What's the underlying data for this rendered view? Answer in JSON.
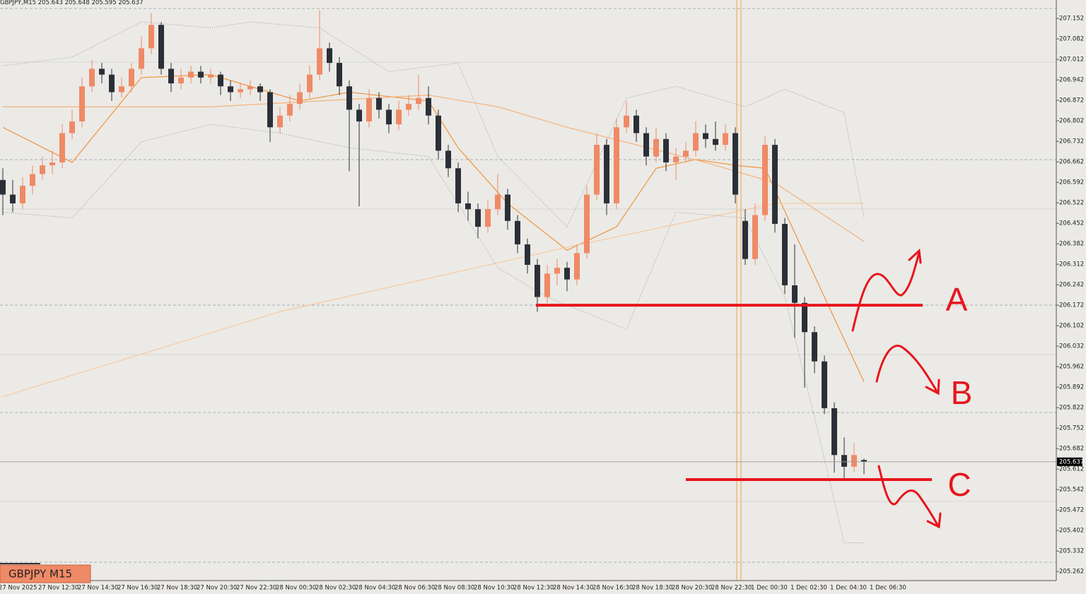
{
  "chart_data": {
    "type": "candlestick",
    "symbol": "GBPJPY,M15",
    "symbol_label": "GBPJPY M15",
    "up_color": "#ef8a66",
    "down_color": "#2b3038",
    "ylim": [
      205.231,
      207.215
    ],
    "yticks": [
      207.152,
      207.082,
      207.012,
      206.942,
      206.872,
      206.802,
      206.732,
      206.662,
      206.592,
      206.522,
      206.452,
      206.382,
      206.312,
      206.242,
      206.172,
      206.102,
      206.032,
      205.962,
      205.892,
      205.822,
      205.752,
      205.682,
      205.612,
      205.542,
      205.472,
      205.402,
      205.332,
      205.262
    ],
    "xlabels": [
      "27 Nov 2025",
      "27 Nov 12:30",
      "27 Nov 14:30",
      "27 Nov 16:30",
      "27 Nov 18:30",
      "27 Nov 20:30",
      "27 Nov 22:30",
      "28 Nov 00:30",
      "28 Nov 02:30",
      "28 Nov 04:30",
      "28 Nov 06:30",
      "28 Nov 08:30",
      "28 Nov 10:30",
      "28 Nov 12:30",
      "28 Nov 14:30",
      "28 Nov 16:30",
      "28 Nov 18:30",
      "28 Nov 20:30",
      "28 Nov 22:30",
      "1 Dec 00:30",
      "1 Dec 02:30",
      "1 Dec 04:30",
      "1 Dec 06:30"
    ],
    "candles": [
      [
        206.6,
        206.64,
        206.48,
        206.55
      ],
      [
        206.55,
        206.6,
        206.49,
        206.52
      ],
      [
        206.52,
        206.61,
        206.5,
        206.58
      ],
      [
        206.58,
        206.65,
        206.55,
        206.62
      ],
      [
        206.62,
        206.68,
        206.6,
        206.65
      ],
      [
        206.65,
        206.7,
        206.62,
        206.66
      ],
      [
        206.66,
        206.79,
        206.64,
        206.76
      ],
      [
        206.76,
        206.84,
        206.74,
        206.8
      ],
      [
        206.8,
        206.95,
        206.78,
        206.92
      ],
      [
        206.92,
        207.01,
        206.9,
        206.98
      ],
      [
        206.98,
        207.0,
        206.93,
        206.96
      ],
      [
        206.96,
        206.98,
        206.87,
        206.9
      ],
      [
        206.9,
        206.95,
        206.88,
        206.92
      ],
      [
        206.92,
        207.0,
        206.9,
        206.98
      ],
      [
        206.98,
        207.09,
        206.96,
        207.05
      ],
      [
        207.05,
        207.17,
        207.03,
        207.13
      ],
      [
        207.13,
        207.14,
        206.96,
        206.98
      ],
      [
        206.98,
        207.0,
        206.9,
        206.93
      ],
      [
        206.93,
        206.98,
        206.91,
        206.95
      ],
      [
        206.95,
        206.99,
        206.93,
        206.97
      ],
      [
        206.97,
        206.99,
        206.93,
        206.95
      ],
      [
        206.95,
        206.98,
        206.93,
        206.96
      ],
      [
        206.96,
        206.97,
        206.89,
        206.92
      ],
      [
        206.92,
        206.94,
        206.87,
        206.9
      ],
      [
        206.9,
        206.93,
        206.88,
        206.91
      ],
      [
        206.91,
        206.94,
        206.89,
        206.92
      ],
      [
        206.92,
        206.93,
        206.87,
        206.9
      ],
      [
        206.9,
        206.91,
        206.73,
        206.78
      ],
      [
        206.78,
        206.85,
        206.76,
        206.82
      ],
      [
        206.82,
        206.89,
        206.8,
        206.86
      ],
      [
        206.86,
        206.93,
        206.84,
        206.9
      ],
      [
        206.9,
        206.99,
        206.88,
        206.96
      ],
      [
        206.96,
        207.18,
        206.94,
        207.05
      ],
      [
        207.05,
        207.07,
        206.97,
        207.0
      ],
      [
        207.0,
        207.02,
        206.89,
        206.92
      ],
      [
        206.92,
        206.94,
        206.63,
        206.84
      ],
      [
        206.84,
        206.86,
        206.51,
        206.8
      ],
      [
        206.8,
        206.91,
        206.78,
        206.88
      ],
      [
        206.88,
        206.9,
        206.81,
        206.84
      ],
      [
        206.84,
        206.86,
        206.76,
        206.79
      ],
      [
        206.79,
        206.87,
        206.77,
        206.84
      ],
      [
        206.84,
        206.89,
        206.82,
        206.86
      ],
      [
        206.86,
        206.96,
        206.84,
        206.88
      ],
      [
        206.88,
        206.92,
        206.79,
        206.82
      ],
      [
        206.82,
        206.84,
        206.67,
        206.7
      ],
      [
        206.7,
        206.72,
        206.61,
        206.64
      ],
      [
        206.64,
        206.66,
        206.49,
        206.52
      ],
      [
        206.52,
        206.56,
        206.46,
        206.5
      ],
      [
        206.5,
        206.52,
        206.4,
        206.44
      ],
      [
        206.44,
        206.53,
        206.42,
        206.5
      ],
      [
        206.5,
        206.62,
        206.48,
        206.55
      ],
      [
        206.55,
        206.57,
        206.43,
        206.46
      ],
      [
        206.46,
        206.48,
        206.35,
        206.38
      ],
      [
        206.38,
        206.4,
        206.28,
        206.31
      ],
      [
        206.31,
        206.33,
        206.15,
        206.2
      ],
      [
        206.2,
        206.31,
        206.18,
        206.28
      ],
      [
        206.28,
        206.33,
        206.24,
        206.3
      ],
      [
        206.3,
        206.32,
        206.22,
        206.26
      ],
      [
        206.26,
        206.38,
        206.24,
        206.35
      ],
      [
        206.35,
        206.58,
        206.33,
        206.55
      ],
      [
        206.55,
        206.76,
        206.53,
        206.72
      ],
      [
        206.72,
        206.74,
        206.48,
        206.52
      ],
      [
        206.52,
        206.81,
        206.5,
        206.78
      ],
      [
        206.78,
        206.87,
        206.76,
        206.82
      ],
      [
        206.82,
        206.84,
        206.73,
        206.76
      ],
      [
        206.76,
        206.78,
        206.65,
        206.68
      ],
      [
        206.68,
        206.78,
        206.66,
        206.74
      ],
      [
        206.74,
        206.76,
        206.63,
        206.66
      ],
      [
        206.66,
        206.71,
        206.6,
        206.68
      ],
      [
        206.68,
        206.73,
        206.66,
        206.7
      ],
      [
        206.7,
        206.8,
        206.68,
        206.76
      ],
      [
        206.76,
        206.79,
        206.71,
        206.74
      ],
      [
        206.74,
        206.8,
        206.7,
        206.72
      ],
      [
        206.72,
        206.79,
        206.7,
        206.76
      ],
      [
        206.76,
        206.78,
        206.52,
        206.55
      ],
      [
        206.46,
        206.5,
        206.31,
        206.33
      ],
      [
        206.33,
        206.52,
        206.31,
        206.48
      ],
      [
        206.48,
        206.75,
        206.46,
        206.72
      ],
      [
        206.72,
        206.74,
        206.42,
        206.45
      ],
      [
        206.45,
        206.47,
        206.21,
        206.24
      ],
      [
        206.24,
        206.38,
        206.06,
        206.18
      ],
      [
        206.18,
        206.2,
        205.89,
        206.08
      ],
      [
        206.08,
        206.1,
        205.94,
        205.98
      ],
      [
        205.98,
        206.0,
        205.8,
        205.82
      ],
      [
        205.82,
        205.84,
        205.6,
        205.66
      ],
      [
        205.66,
        205.72,
        205.58,
        205.62
      ],
      [
        205.62,
        205.7,
        205.6,
        205.66
      ],
      [
        205.643,
        205.648,
        205.595,
        205.637
      ]
    ],
    "indicators": [
      {
        "color": "#f0943c",
        "style": "solid",
        "x": [
          0,
          7,
          14,
          21,
          30,
          35,
          43,
          46,
          51,
          57,
          62,
          66,
          70,
          74,
          77,
          80,
          83,
          87
        ],
        "values": [
          206.78,
          206.66,
          206.95,
          206.96,
          206.87,
          206.9,
          206.87,
          206.71,
          206.52,
          206.36,
          206.44,
          206.64,
          206.67,
          206.65,
          206.64,
          206.42,
          206.2,
          205.91
        ]
      },
      {
        "color": "#f5b27a",
        "style": "solid",
        "x": [
          0,
          21,
          43,
          50,
          57,
          71,
          78,
          87
        ],
        "values": [
          206.85,
          206.85,
          206.89,
          206.85,
          206.78,
          206.66,
          206.59,
          206.39
        ]
      },
      {
        "color": "#f7c9a0",
        "style": "solid",
        "x": [
          0,
          28,
          57,
          71,
          78,
          87
        ],
        "values": [
          205.86,
          206.15,
          206.37,
          206.47,
          206.52,
          206.52
        ]
      },
      {
        "color": "#9a9a9a",
        "style": "dotted",
        "x": [
          0,
          7,
          14,
          21,
          25,
          32,
          39,
          46,
          50,
          57,
          63,
          68,
          75,
          79,
          85,
          87
        ],
        "values": [
          206.99,
          207.02,
          207.14,
          207.12,
          207.14,
          207.12,
          206.97,
          207.0,
          206.68,
          206.44,
          206.88,
          206.92,
          206.85,
          206.91,
          206.83,
          206.47
        ]
      },
      {
        "color": "#9a9a9a",
        "style": "dotted",
        "x": [
          0,
          7,
          14,
          21,
          28,
          35,
          43,
          50,
          55,
          63,
          68,
          75,
          79,
          82,
          85,
          87
        ],
        "values": [
          206.49,
          206.47,
          206.73,
          206.79,
          206.76,
          206.71,
          206.68,
          206.3,
          206.2,
          206.09,
          206.49,
          206.47,
          206.2,
          205.79,
          205.36,
          205.36
        ]
      }
    ],
    "annotations": [
      {
        "text": "A",
        "level": 206.172
      },
      {
        "text": "B"
      },
      {
        "text": "C",
        "level": 205.576
      }
    ]
  }
}
